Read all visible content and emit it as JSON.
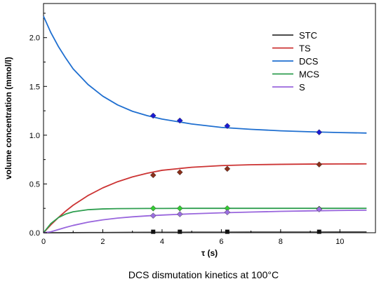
{
  "chart_data": {
    "type": "line",
    "caption": "DCS dismutation kinetics at 100°C",
    "xlabel": "τ (s)",
    "ylabel": "volume concentration (mmol/l)",
    "xlim": [
      0,
      11.2
    ],
    "ylim": [
      0,
      2.35
    ],
    "xticks": [
      0,
      2,
      4,
      6,
      8,
      10
    ],
    "yticks": [
      0.0,
      0.5,
      1.0,
      1.5,
      2.0
    ],
    "xtick_labels": [
      "0",
      "2",
      "4",
      "6",
      "8",
      "10"
    ],
    "ytick_labels": [
      "0.0",
      "0.5",
      "1.0",
      "1.5",
      "2.0"
    ],
    "grid": false,
    "legend_position": "top-right",
    "series": [
      {
        "name": "STC",
        "color": "#333333",
        "x": [
          0,
          0.5,
          1,
          2,
          3,
          4,
          5,
          6,
          7,
          8,
          9,
          10,
          10.9
        ],
        "y": [
          0,
          0,
          0.001,
          0.002,
          0.003,
          0.004,
          0.005,
          0.005,
          0.006,
          0.006,
          0.006,
          0.007,
          0.007
        ],
        "markers_x": [
          3.7,
          4.6,
          6.2,
          9.3
        ],
        "markers_y": [
          0.01,
          0.01,
          0.01,
          0.01
        ],
        "marker": "square",
        "marker_color": "#111111"
      },
      {
        "name": "TS",
        "color": "#cc3333",
        "x": [
          0,
          0.25,
          0.5,
          0.75,
          1,
          1.5,
          2,
          2.5,
          3,
          3.5,
          4,
          5,
          6,
          7,
          8,
          9,
          10,
          10.9
        ],
        "y": [
          0,
          0.082,
          0.155,
          0.222,
          0.282,
          0.381,
          0.46,
          0.523,
          0.572,
          0.61,
          0.64,
          0.671,
          0.688,
          0.697,
          0.701,
          0.704,
          0.705,
          0.706
        ],
        "markers_x": [
          3.7,
          4.6,
          6.2,
          9.3
        ],
        "markers_y": [
          0.59,
          0.62,
          0.655,
          0.7
        ],
        "marker": "diamond",
        "marker_color": "#8b2f1a"
      },
      {
        "name": "DCS",
        "color": "#1f6fd0",
        "x": [
          0,
          0.25,
          0.5,
          0.75,
          1,
          1.5,
          2,
          2.5,
          3,
          3.5,
          4,
          5,
          6,
          7,
          8,
          9,
          10,
          10.9
        ],
        "y": [
          2.22,
          2.05,
          1.91,
          1.79,
          1.68,
          1.52,
          1.4,
          1.31,
          1.245,
          1.2,
          1.165,
          1.115,
          1.08,
          1.06,
          1.045,
          1.035,
          1.027,
          1.022
        ],
        "markers_x": [
          3.7,
          4.6,
          6.2,
          9.3
        ],
        "markers_y": [
          1.2,
          1.15,
          1.095,
          1.03
        ],
        "marker": "diamond",
        "marker_color": "#1a1ad6"
      },
      {
        "name": "MCS",
        "color": "#2e9e4f",
        "x": [
          0,
          0.25,
          0.5,
          0.75,
          1,
          1.5,
          2,
          2.5,
          3,
          3.5,
          4,
          5,
          6,
          7,
          8,
          9,
          10,
          10.9
        ],
        "y": [
          0,
          0.095,
          0.155,
          0.192,
          0.215,
          0.236,
          0.244,
          0.247,
          0.248,
          0.249,
          0.249,
          0.25,
          0.25,
          0.25,
          0.25,
          0.25,
          0.25,
          0.25
        ],
        "markers_x": [
          3.7,
          4.6,
          6.2,
          9.3
        ],
        "markers_y": [
          0.25,
          0.25,
          0.25,
          0.245
        ],
        "marker": "diamond",
        "marker_color": "#33cc33"
      },
      {
        "name": "S",
        "color": "#9966dd",
        "x": [
          0,
          0.25,
          0.5,
          0.75,
          1,
          1.5,
          2,
          2.5,
          3,
          3.5,
          4,
          5,
          6,
          7,
          8,
          9,
          10,
          10.9
        ],
        "y": [
          0,
          0.01,
          0.032,
          0.055,
          0.075,
          0.108,
          0.132,
          0.15,
          0.163,
          0.173,
          0.181,
          0.194,
          0.204,
          0.212,
          0.219,
          0.224,
          0.228,
          0.231
        ],
        "markers_x": [
          3.7,
          4.6,
          6.2,
          9.3
        ],
        "markers_y": [
          0.175,
          0.19,
          0.21,
          0.24
        ],
        "marker": "diamond",
        "marker_color": "#9a6ee0"
      }
    ]
  }
}
